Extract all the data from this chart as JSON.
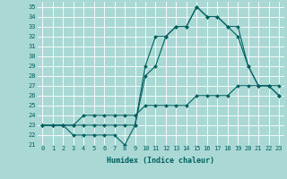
{
  "x": [
    0,
    1,
    2,
    3,
    4,
    5,
    6,
    7,
    8,
    9,
    10,
    11,
    12,
    13,
    14,
    15,
    16,
    17,
    18,
    19,
    20,
    21,
    22,
    23
  ],
  "series1": [
    23,
    23,
    23,
    22,
    22,
    22,
    22,
    22,
    21,
    23,
    29,
    32,
    32,
    33,
    33,
    35,
    34,
    34,
    33,
    32,
    29,
    27,
    27,
    26
  ],
  "series2": [
    23,
    23,
    23,
    23,
    23,
    23,
    23,
    23,
    23,
    23,
    28,
    29,
    32,
    33,
    33,
    35,
    34,
    34,
    33,
    33,
    29,
    27,
    27,
    26
  ],
  "series3": [
    23,
    23,
    23,
    23,
    24,
    24,
    24,
    24,
    24,
    24,
    25,
    25,
    25,
    25,
    25,
    26,
    26,
    26,
    26,
    27,
    27,
    27,
    27,
    27
  ],
  "bg_color": "#aad9d5",
  "grid_color": "#ffffff",
  "line_color": "#006060",
  "marker": "D",
  "marker_size": 2,
  "xlabel": "Humidex (Indice chaleur)",
  "ylim": [
    21,
    35.5
  ],
  "xlim": [
    -0.5,
    23.5
  ],
  "yticks": [
    21,
    22,
    23,
    24,
    25,
    26,
    27,
    28,
    29,
    30,
    31,
    32,
    33,
    34,
    35
  ],
  "xticks": [
    0,
    1,
    2,
    3,
    4,
    5,
    6,
    7,
    8,
    9,
    10,
    11,
    12,
    13,
    14,
    15,
    16,
    17,
    18,
    19,
    20,
    21,
    22,
    23
  ],
  "tick_fontsize": 5.0,
  "xlabel_fontsize": 6.0
}
